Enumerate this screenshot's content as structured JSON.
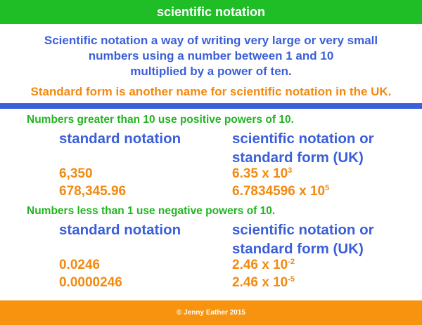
{
  "header": {
    "title": "scientific notation"
  },
  "intro": [
    "Scientific notation a way of writing very large or very small",
    "numbers using a number between 1 and 10",
    "multiplied by a power of ten."
  ],
  "note": "Standard form is another name for scientific notation in the UK.",
  "sections": [
    {
      "heading": "Numbers greater than 10 use positive powers of 10.",
      "columns": [
        "standard notation",
        "scientific notation or",
        "standard form (UK)"
      ],
      "rows": [
        {
          "standard": "6,350",
          "scientific": "6.35 x 10",
          "exponent": "3"
        },
        {
          "standard": "678,345.96",
          "scientific": "6.7834596 x 10",
          "exponent": "5"
        }
      ]
    },
    {
      "heading": "Numbers less than 1 use negative powers of 10.",
      "columns": [
        "standard notation",
        "scientific notation or",
        "standard form (UK)"
      ],
      "rows": [
        {
          "standard": "0.0246",
          "scientific": "2.46 x 10",
          "exponent": "-2"
        },
        {
          "standard": "0.0000246",
          "scientific": "2.46 x 10",
          "exponent": "-5"
        }
      ]
    }
  ],
  "footer": "© Jenny Eather 2015"
}
